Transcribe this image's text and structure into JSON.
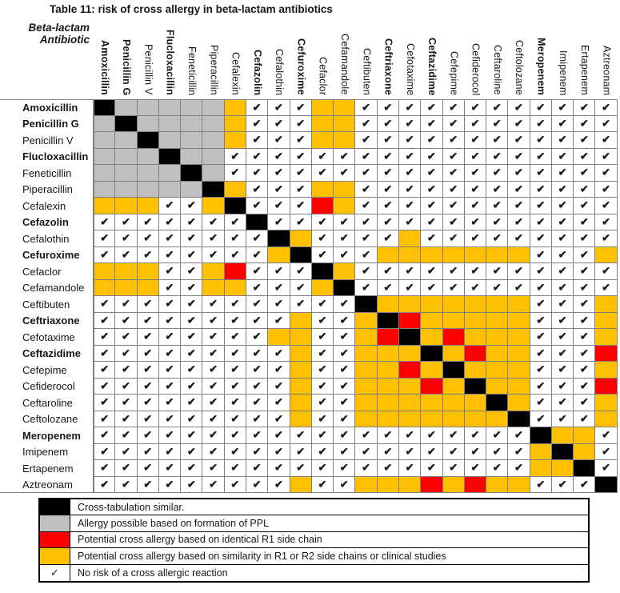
{
  "title": "Table 11: risk of cross allergy in beta-lactam antibiotics",
  "corner_header": {
    "line1": "Beta-lactam",
    "line2": "Antibiotic"
  },
  "icons": {
    "check_heavy": "✔",
    "check_light": "✓"
  },
  "colors": {
    "black": "#000000",
    "gray": "#BFBFBF",
    "red": "#FF0000",
    "orange": "#FFC000",
    "grid_line": "#7F7F7F"
  },
  "antibiotics": [
    {
      "name": "Amoxicillin",
      "bold": true
    },
    {
      "name": "Penicillin G",
      "bold": true
    },
    {
      "name": "Penicillin V",
      "bold": false
    },
    {
      "name": "Flucloxacillin",
      "bold": true
    },
    {
      "name": "Feneticillin",
      "bold": false
    },
    {
      "name": "Piperacillin",
      "bold": false
    },
    {
      "name": "Cefalexin",
      "bold": false
    },
    {
      "name": "Cefazolin",
      "bold": true
    },
    {
      "name": "Cefalothin",
      "bold": false
    },
    {
      "name": "Cefuroxime",
      "bold": true
    },
    {
      "name": "Cefaclor",
      "bold": false
    },
    {
      "name": "Cefamandole",
      "bold": false
    },
    {
      "name": "Ceftibuten",
      "bold": false
    },
    {
      "name": "Ceftriaxone",
      "bold": true
    },
    {
      "name": "Cefotaxime",
      "bold": false
    },
    {
      "name": "Ceftazidime",
      "bold": true
    },
    {
      "name": "Cefepime",
      "bold": false
    },
    {
      "name": "Cefiderocol",
      "bold": false
    },
    {
      "name": "Ceftaroline",
      "bold": false
    },
    {
      "name": "Ceftolozane",
      "bold": false
    },
    {
      "name": "Meropenem",
      "bold": true
    },
    {
      "name": "Imipenem",
      "bold": false
    },
    {
      "name": "Ertapenem",
      "bold": false
    },
    {
      "name": "Aztreonam",
      "bold": false
    }
  ],
  "cell_code_meaning": {
    "B": "cross-tabulation similar (same drug)",
    "G": "allergy possible based on formation of PPL",
    "R": "potential cross allergy, identical R1 side chain",
    "O": "potential cross allergy, similar R1/R2 side chains or clinical studies",
    "C": "no risk of a cross allergic reaction (check mark)"
  },
  "matrix": [
    "BGGGGGOCCCOOCCCCCCCCCCCC",
    "GBGGGGOCCCOOCCCCCCCCCCCC",
    "GGBGGGOCCCOOCCCCCCCCCCCC",
    "GGGBGGCCCCCCCCCCCCCCCCCC",
    "GGGGBGCCCCCCCCCCCCCCCCCC",
    "GGGGGBOCCCOOCCCCCCCCCCCC",
    "OOOCCOBCCCROCCCCCCCCCCCC",
    "CCCCCCCBCCCCCCCCCCCCCCCC",
    "CCCCCCCCBOCCCCOCCCCCCCCC",
    "CCCCCCCCOBCCCOOOOOOOCCCO",
    "OOOCCORCCCBOCCCCCCCCCCCC",
    "OOOCCOOCCCOBCCCCCCCCCCCC",
    "CCCCCCCCCCCCBOOOOOOOCCCO",
    "CCCCCCCCCOCCOBROOOOOCCCO",
    "CCCCCCCCOOCCORBOROOOCCCO",
    "CCCCCCCCCOCCOOOBOROOCCCR",
    "CCCCCCCCCOCCOOROBOOOCCCO",
    "CCCCCCCCCOCCOOOROBOOCCCR",
    "CCCCCCCCCOCCOOOOOOBOCCCO",
    "CCCCCCCCCOCCOOOOOOOBCCCO",
    "CCCCCCCCCCCCCCCCCCCCBOOC",
    "CCCCCCCCCCCCCCCCCCCCOBOC",
    "CCCCCCCCCCCCCCCCCCCCOOBC",
    "CCCCCCCCCOCCOOOROROOCCCB"
  ],
  "legend": [
    {
      "swatch": "black",
      "label": "Cross-tabulation similar."
    },
    {
      "swatch": "gray",
      "label": "Allergy possible based on formation of PPL"
    },
    {
      "swatch": "red",
      "label": "Potential cross allergy based on identical R1 side chain"
    },
    {
      "swatch": "orange",
      "label": "Potential cross allergy based on similarity in R1 or R2 side chains or clinical studies"
    },
    {
      "swatch": "check",
      "label": "No risk of a cross allergic reaction"
    }
  ]
}
